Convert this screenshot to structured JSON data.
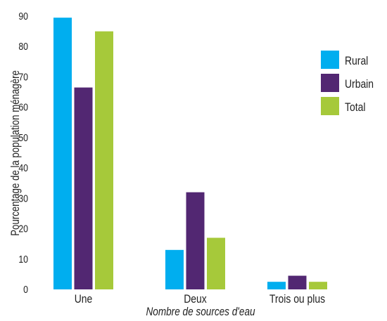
{
  "chart_data": {
    "type": "bar",
    "title": "",
    "xlabel": "Nombre de sources d'eau",
    "ylabel": "Pourcentage de la population ménagère",
    "ylim": [
      0,
      90
    ],
    "yticks": [
      "0",
      "10",
      "20",
      "30",
      "40",
      "50",
      "60",
      "70",
      "80",
      "90"
    ],
    "grid": false,
    "legend_position": "right",
    "categories": [
      "Une",
      "Deux",
      "Trois ou plus"
    ],
    "series": [
      {
        "name": "Rural",
        "color": "#00aeef",
        "values": [
          89.5,
          13,
          2.5
        ]
      },
      {
        "name": "Urbain",
        "color": "#522772",
        "values": [
          66.5,
          32,
          4.5
        ]
      },
      {
        "name": "Total",
        "color": "#a6c93a",
        "values": [
          85,
          17,
          2.5
        ]
      }
    ]
  }
}
